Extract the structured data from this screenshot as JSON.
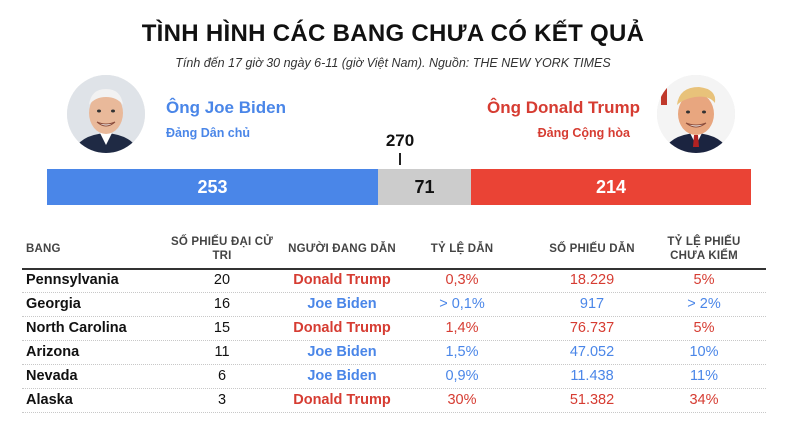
{
  "header": {
    "title": "TÌNH HÌNH CÁC BANG CHƯA CÓ KẾT QUẢ",
    "subtitle": "Tính đến 17 giờ 30 ngày 6-11 (giờ Việt Nam). Nguồn: THE NEW YORK TIMES"
  },
  "candidates": {
    "biden": {
      "name": "Ông Joe Biden",
      "party": "Đảng Dân chủ",
      "color": "#4a86e8"
    },
    "trump": {
      "name": "Ông Donald Trump",
      "party": "Đảng Cộng hòa",
      "color": "#ea4335"
    }
  },
  "chart_data": {
    "type": "bar",
    "threshold": 270,
    "total": 538,
    "segments": [
      {
        "value": 253,
        "color": "#4a86e8"
      },
      {
        "value": 71,
        "color": "#cccccc"
      },
      {
        "value": 214,
        "color": "#ea4335"
      }
    ]
  },
  "table": {
    "headers": [
      "BANG",
      "SỐ PHIẾU ĐẠI CỬ TRI",
      "NGƯỜI ĐANG DẪN",
      "TỶ LỆ DẪN",
      "SỐ PHIẾU DẪN",
      "TỶ LỆ PHIẾU CHƯA KIỂM"
    ],
    "rows": [
      {
        "state": "Pennsylvania",
        "electoral": "20",
        "leader": "Donald Trump",
        "party": "red",
        "margin": "0,3%",
        "lead_votes": "18.229",
        "uncounted": "5%"
      },
      {
        "state": "Georgia",
        "electoral": "16",
        "leader": "Joe Biden",
        "party": "blue",
        "margin": "> 0,1%",
        "lead_votes": "917",
        "uncounted": "> 2%"
      },
      {
        "state": "North Carolina",
        "electoral": "15",
        "leader": "Donald Trump",
        "party": "red",
        "margin": "1,4%",
        "lead_votes": "76.737",
        "uncounted": "5%"
      },
      {
        "state": "Arizona",
        "electoral": "11",
        "leader": "Joe Biden",
        "party": "blue",
        "margin": "1,5%",
        "lead_votes": "47.052",
        "uncounted": "10%"
      },
      {
        "state": "Nevada",
        "electoral": "6",
        "leader": "Joe Biden",
        "party": "blue",
        "margin": "0,9%",
        "lead_votes": "11.438",
        "uncounted": "11%"
      },
      {
        "state": "Alaska",
        "electoral": "3",
        "leader": "Donald Trump",
        "party": "red",
        "margin": "30%",
        "lead_votes": "51.382",
        "uncounted": "34%"
      }
    ]
  }
}
